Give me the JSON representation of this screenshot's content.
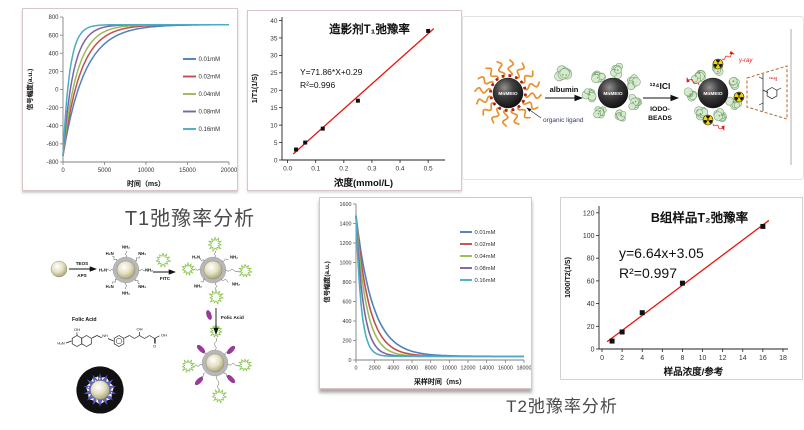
{
  "captions": {
    "t1_analysis": "T1弛豫率分析",
    "t2_analysis": "T2弛豫率分析"
  },
  "colors": {
    "fit_line_red": "#e8150d",
    "series_palette": [
      "#4F81BD",
      "#C0504D",
      "#9BBB59",
      "#8064A2",
      "#4BACC6"
    ],
    "panel_border": "#d9c6c6",
    "caption_gray": "#4a4a4a",
    "ligand_orange": "#e8922e",
    "ligand_dot_red": "#a52020",
    "albumin_green_fill": "#d8e9cf",
    "albumin_green_stroke": "#6f9e67",
    "fitc_green": "#8bc653",
    "folic_purple": "#a136a0",
    "trefoil_yellow": "#f2d50c",
    "dashed_box_brown": "#b4622d",
    "gamma_red": "#e8150d",
    "flower_black": "#111111",
    "flower_blue": "#6665c4"
  },
  "labeling_diagram": {
    "nanoparticle_label": "MnMEIO",
    "organic_ligand_label": "organic ligand",
    "albumin_label": "albumin",
    "iodine_reagent_label": "¹²⁴ICl",
    "iodo_beads_line1": "IODO-",
    "iodo_beads_line2": "BEADS",
    "gamma_ray_label": "γ-ray",
    "iodine_product_label": "¹²⁴I"
  },
  "synthesis_diagram": {
    "teos_label": "TEOS",
    "aps_label": "APS",
    "fitc_label": "FITC",
    "folic_acid_label": "Folic Acid",
    "amine_label": "NH₂",
    "amine_label_reversed": "H₂N",
    "structure_labels": {
      "oh_top": "OH",
      "h2n": "H₂N",
      "nh": "NH",
      "oh_mid": "OH",
      "o_bottom": "O",
      "oh_end": "OH"
    }
  },
  "chart_data": [
    {
      "id": "t1_recovery",
      "type": "line",
      "title": "",
      "xlabel": "时间（ms）",
      "ylabel": "信号幅度(a.u.)",
      "xlim": [
        0,
        20000
      ],
      "ylim": [
        -800,
        800
      ],
      "xticks": [
        0,
        5000,
        10000,
        15000,
        20000
      ],
      "xtick_labels": [
        "0",
        "5000",
        "10000",
        "15000",
        "20000"
      ],
      "yticks": [
        -800,
        -600,
        -400,
        -200,
        0,
        200,
        400,
        600,
        800
      ],
      "grid": false,
      "legend_position": "right-inside",
      "curve_model": "y = y_inf - (y_inf - y0) * exp(-t/tau)",
      "y0": -730,
      "y_inf": 715,
      "series": [
        {
          "name": "0.01mM",
          "color": "#4F81BD",
          "tau_ms": 2600
        },
        {
          "name": "0.02mM",
          "color": "#C0504D",
          "tau_ms": 2100
        },
        {
          "name": "0.04mM",
          "color": "#9BBB59",
          "tau_ms": 1700
        },
        {
          "name": "0.08mM",
          "color": "#8064A2",
          "tau_ms": 1250
        },
        {
          "name": "0.16mM",
          "color": "#4BACC6",
          "tau_ms": 800
        }
      ]
    },
    {
      "id": "t1_relaxivity",
      "type": "scatter",
      "title": "造影剂T₁弛豫率",
      "xlabel": "浓度(mmol/L)",
      "ylabel": "1/T1(1/S)",
      "xlim": [
        -0.02,
        0.56
      ],
      "ylim": [
        0,
        41
      ],
      "xticks": [
        0,
        0.1,
        0.2,
        0.3,
        0.4,
        0.5
      ],
      "xtick_labels": [
        "0.0",
        "0.1",
        "0.2",
        "0.3",
        "0.4",
        "0.5"
      ],
      "yticks": [
        0,
        5,
        10,
        15,
        20,
        25,
        30,
        35,
        40
      ],
      "grid": false,
      "points": [
        [
          0.03,
          3
        ],
        [
          0.0625,
          5
        ],
        [
          0.125,
          9
        ],
        [
          0.25,
          17
        ],
        [
          0.5,
          37
        ]
      ],
      "fit": {
        "equation": "Y=71.86*X+0.29",
        "r_squared": "R²=0.996",
        "slope": 71.86,
        "intercept": 0.29,
        "x_start": 0.02,
        "x_end": 0.52,
        "color": "#e8150d"
      }
    },
    {
      "id": "t2_decay",
      "type": "line",
      "title": "",
      "xlabel": "采样时间（ms）",
      "ylabel": "信号幅度(a.u.)",
      "xlim": [
        0,
        18000
      ],
      "ylim": [
        0,
        1600
      ],
      "xticks": [
        0,
        2000,
        4000,
        6000,
        8000,
        10000,
        12000,
        14000,
        16000,
        18000
      ],
      "xtick_labels": [
        "0",
        "2000",
        "4000",
        "6000",
        "8000",
        "10000",
        "12000",
        "14000",
        "16000",
        "18000"
      ],
      "yticks": [
        0,
        200,
        400,
        600,
        800,
        1000,
        1200,
        1400,
        1600
      ],
      "grid": false,
      "legend_position": "right-inside",
      "curve_model": "y = y_base + (y0 - y_base) * exp(-t/tau)",
      "y0": 1480,
      "y_base": 38,
      "series": [
        {
          "name": "0.01mM",
          "color": "#4F81BD",
          "tau_ms": 1800
        },
        {
          "name": "0.02mM",
          "color": "#C0504D",
          "tau_ms": 1400
        },
        {
          "name": "0.04mM",
          "color": "#9BBB59",
          "tau_ms": 1100
        },
        {
          "name": "0.08mM",
          "color": "#8064A2",
          "tau_ms": 800
        },
        {
          "name": "0.16mM",
          "color": "#4BACC6",
          "tau_ms": 550
        }
      ]
    },
    {
      "id": "t2_relaxivity",
      "type": "scatter",
      "title": "B组样品T₂弛豫率",
      "xlabel": "样品浓度/参考",
      "ylabel": "1000/T2(1/S)",
      "xlim": [
        -0.3,
        18.5
      ],
      "ylim": [
        0,
        126
      ],
      "xticks": [
        0,
        2,
        4,
        6,
        8,
        10,
        12,
        14,
        16,
        18
      ],
      "xtick_labels": [
        "0",
        "2",
        "4",
        "6",
        "8",
        "10",
        "12",
        "14",
        "16",
        "18"
      ],
      "yticks": [
        0,
        20,
        40,
        60,
        80,
        100,
        120
      ],
      "grid": false,
      "points": [
        [
          1,
          7
        ],
        [
          2,
          15
        ],
        [
          4,
          32
        ],
        [
          8,
          58
        ],
        [
          16,
          108
        ]
      ],
      "fit": {
        "equation": "y=6.64x+3.05",
        "r_squared": "R²=0.997",
        "slope": 6.64,
        "intercept": 3.05,
        "x_start": 0.5,
        "x_end": 16.6,
        "color": "#e8150d"
      }
    }
  ]
}
